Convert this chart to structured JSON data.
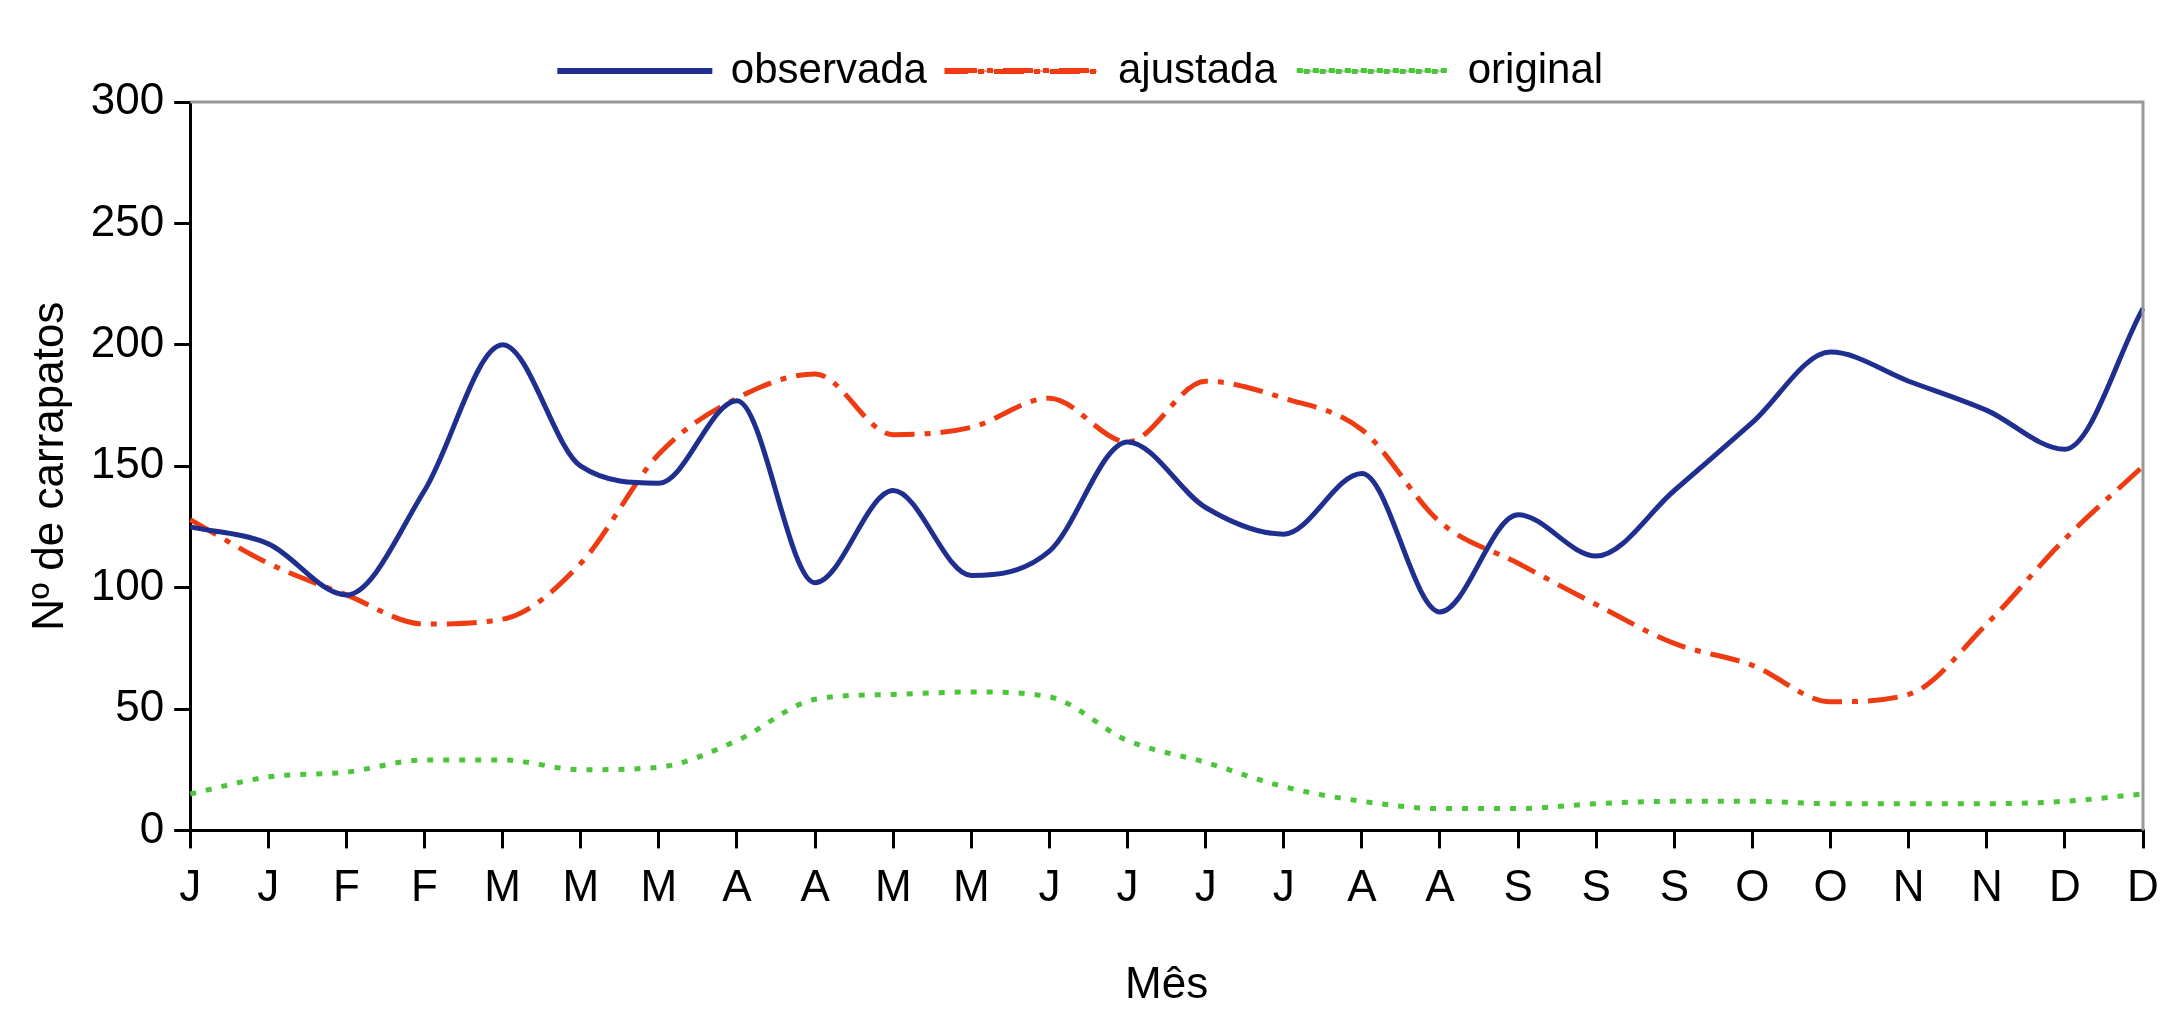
{
  "chart_data": {
    "type": "line",
    "xlabel": "Mês",
    "ylabel": "Nº de carrapatos",
    "categories": [
      "J",
      "J",
      "F",
      "F",
      "M",
      "M",
      "M",
      "A",
      "A",
      "M",
      "M",
      "J",
      "J",
      "J",
      "J",
      "A",
      "A",
      "S",
      "S",
      "S",
      "O",
      "O",
      "N",
      "N",
      "D",
      "D"
    ],
    "series": [
      {
        "name": "observada",
        "color": "#1f2f8f",
        "line_style": "solid",
        "values": [
          125,
          118,
          97,
          140,
          200,
          150,
          143,
          177,
          102,
          140,
          105,
          115,
          160,
          133,
          122,
          147,
          90,
          130,
          113,
          140,
          168,
          197,
          185,
          173,
          157,
          215
        ]
      },
      {
        "name": "ajustada",
        "color": "#ee3b12",
        "line_style": "dashed",
        "values": [
          128,
          110,
          97,
          85,
          87,
          110,
          155,
          178,
          188,
          163,
          166,
          178,
          160,
          185,
          178,
          165,
          127,
          110,
          93,
          77,
          68,
          53,
          56,
          85,
          120,
          150
        ]
      },
      {
        "name": "original",
        "color": "#4cc43c",
        "line_style": "dotted",
        "values": [
          15,
          22,
          24,
          29,
          29,
          25,
          26,
          37,
          54,
          56,
          57,
          55,
          37,
          28,
          18,
          12,
          9,
          9,
          11,
          12,
          12,
          11,
          11,
          11,
          12,
          15
        ]
      }
    ],
    "ylim": [
      0,
      300
    ],
    "yticks": [
      0,
      50,
      100,
      150,
      200,
      250,
      300
    ],
    "grid": false,
    "legend": "top",
    "marker": "none"
  }
}
